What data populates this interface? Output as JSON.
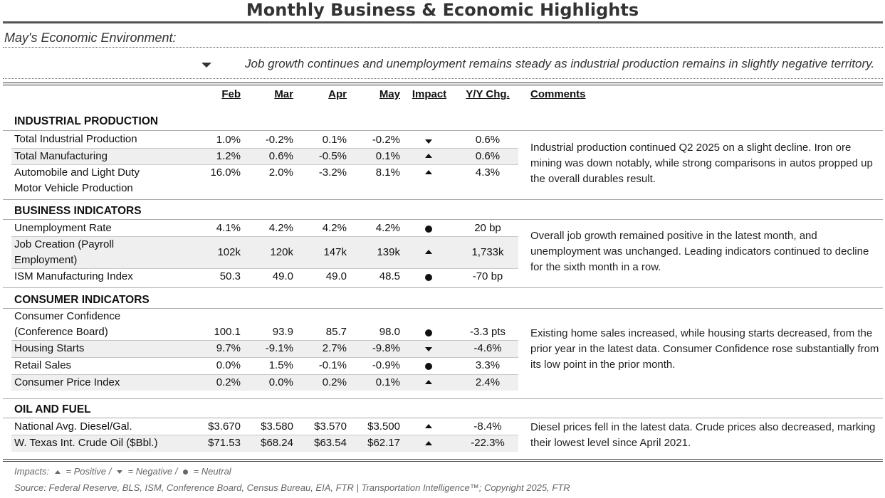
{
  "title": "Monthly Business & Economic Highlights",
  "env_heading": "May's Economic Environment:",
  "summary": "Job growth continues and unemployment remains steady as industrial production remains in slightly negative territory.",
  "columns": {
    "feb": "Feb",
    "mar": "Mar",
    "apr": "Apr",
    "may": "May",
    "impact": "Impact",
    "yy": "Y/Y Chg.",
    "comments": "Comments"
  },
  "sections": [
    {
      "title": "INDUSTRIAL PRODUCTION",
      "rows": [
        {
          "label": "Total Industrial Production",
          "feb": "1.0%",
          "mar": "-0.2%",
          "apr": "0.1%",
          "may": "-0.2%",
          "impact": "negative",
          "yy": "0.6%"
        },
        {
          "label": "Total Manufacturing",
          "feb": "1.2%",
          "mar": "0.6%",
          "apr": "-0.5%",
          "may": "0.1%",
          "impact": "positive",
          "yy": "0.6%"
        },
        {
          "label": "Automobile and Light Duty",
          "label2": "Motor Vehicle Production",
          "feb": "16.0%",
          "mar": "2.0%",
          "apr": "-3.2%",
          "may": "8.1%",
          "impact": "positive",
          "yy": "4.3%"
        }
      ],
      "comment": "Industrial production continued Q2 2025 on a slight decline. Iron ore mining was down notably, while strong comparisons in autos propped up the overall durables result."
    },
    {
      "title": "BUSINESS INDICATORS",
      "rows": [
        {
          "label": "Unemployment Rate",
          "feb": "4.1%",
          "mar": "4.2%",
          "apr": "4.2%",
          "may": "4.2%",
          "impact": "neutral",
          "yy": "20 bp"
        },
        {
          "label": "Job Creation (Payroll",
          "label2": "Employment)",
          "feb": "102k",
          "mar": "120k",
          "apr": "147k",
          "may": "139k",
          "impact": "positive",
          "yy": "1,733k"
        },
        {
          "label": "ISM Manufacturing Index",
          "feb": "50.3",
          "mar": "49.0",
          "apr": "49.0",
          "may": "48.5",
          "impact": "neutral",
          "yy": "-70 bp"
        }
      ],
      "comment": "Overall job growth remained positive in the latest month, and unemployment was unchanged. Leading indicators continued to decline for the sixth month in a row."
    },
    {
      "title": "CONSUMER INDICATORS",
      "rows": [
        {
          "label": "Consumer Confidence",
          "label2": "(Conference Board)",
          "feb": "100.1",
          "mar": "93.9",
          "apr": "85.7",
          "may": "98.0",
          "impact": "neutral",
          "yy": "-3.3 pts"
        },
        {
          "label": "Housing Starts",
          "feb": "9.7%",
          "mar": "-9.1%",
          "apr": "2.7%",
          "may": "-9.8%",
          "impact": "negative",
          "yy": "-4.6%"
        },
        {
          "label": "Retail Sales",
          "feb": "0.0%",
          "mar": "1.5%",
          "apr": "-0.1%",
          "may": "-0.9%",
          "impact": "neutral",
          "yy": "3.3%"
        },
        {
          "label": "Consumer Price Index",
          "feb": "0.2%",
          "mar": "0.0%",
          "apr": "0.2%",
          "may": "0.1%",
          "impact": "positive",
          "yy": "2.4%"
        }
      ],
      "comment": "Existing home sales increased, while housing starts decreased, from the prior year in the latest data. Consumer Confidence rose substantially from its low point in the prior month."
    },
    {
      "title": "OIL AND FUEL",
      "rows": [
        {
          "label": "National Avg. Diesel/Gal.",
          "feb": "$3.670",
          "mar": "$3.580",
          "apr": "$3.570",
          "may": "$3.500",
          "impact": "positive",
          "yy": "-8.4%"
        },
        {
          "label": "W. Texas Int. Crude Oil ($Bbl.)",
          "feb": "$71.53",
          "mar": "$68.24",
          "apr": "$63.54",
          "may": "$62.17",
          "impact": "positive",
          "yy": "-22.3%"
        }
      ],
      "comment": "Diesel prices fell in the latest data. Crude prices also decreased, marking their lowest level since April 2021."
    }
  ],
  "footer": {
    "impacts_label": "Impacts:",
    "positive": "= Positive /",
    "negative": "= Negative /",
    "neutral": "= Neutral",
    "source": "Source: Federal Reserve, BLS, ISM, Conference Board, Census Bureau, EIA, FTR | Transportation Intelligence™; Copyright 2025, FTR"
  }
}
